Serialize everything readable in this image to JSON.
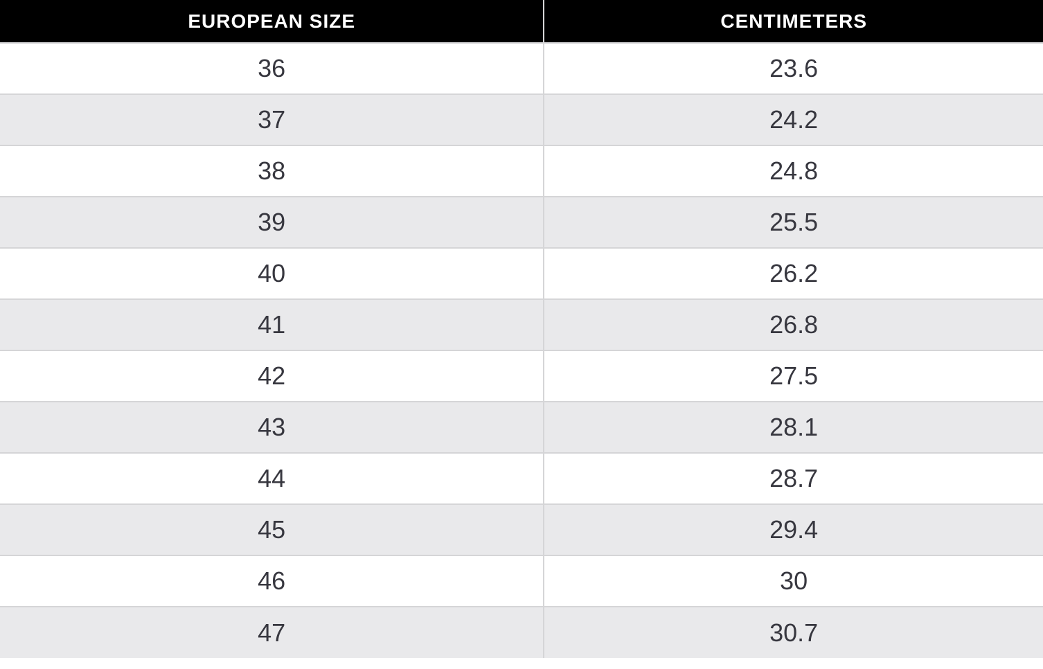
{
  "chart_data": {
    "type": "table",
    "columns": [
      "EUROPEAN SIZE",
      "CENTIMETERS"
    ],
    "rows": [
      [
        "36",
        "23.6"
      ],
      [
        "37",
        "24.2"
      ],
      [
        "38",
        "24.8"
      ],
      [
        "39",
        "25.5"
      ],
      [
        "40",
        "26.2"
      ],
      [
        "41",
        "26.8"
      ],
      [
        "42",
        "27.5"
      ],
      [
        "43",
        "28.1"
      ],
      [
        "44",
        "28.7"
      ],
      [
        "45",
        "29.4"
      ],
      [
        "46",
        "30"
      ],
      [
        "47",
        "30.7"
      ]
    ]
  },
  "colors": {
    "header_bg": "#000000",
    "header_text": "#ffffff",
    "row_bg": "#ffffff",
    "row_alt_bg": "#e9e9eb",
    "border": "#d5d5d7",
    "cell_text": "#37373f"
  }
}
